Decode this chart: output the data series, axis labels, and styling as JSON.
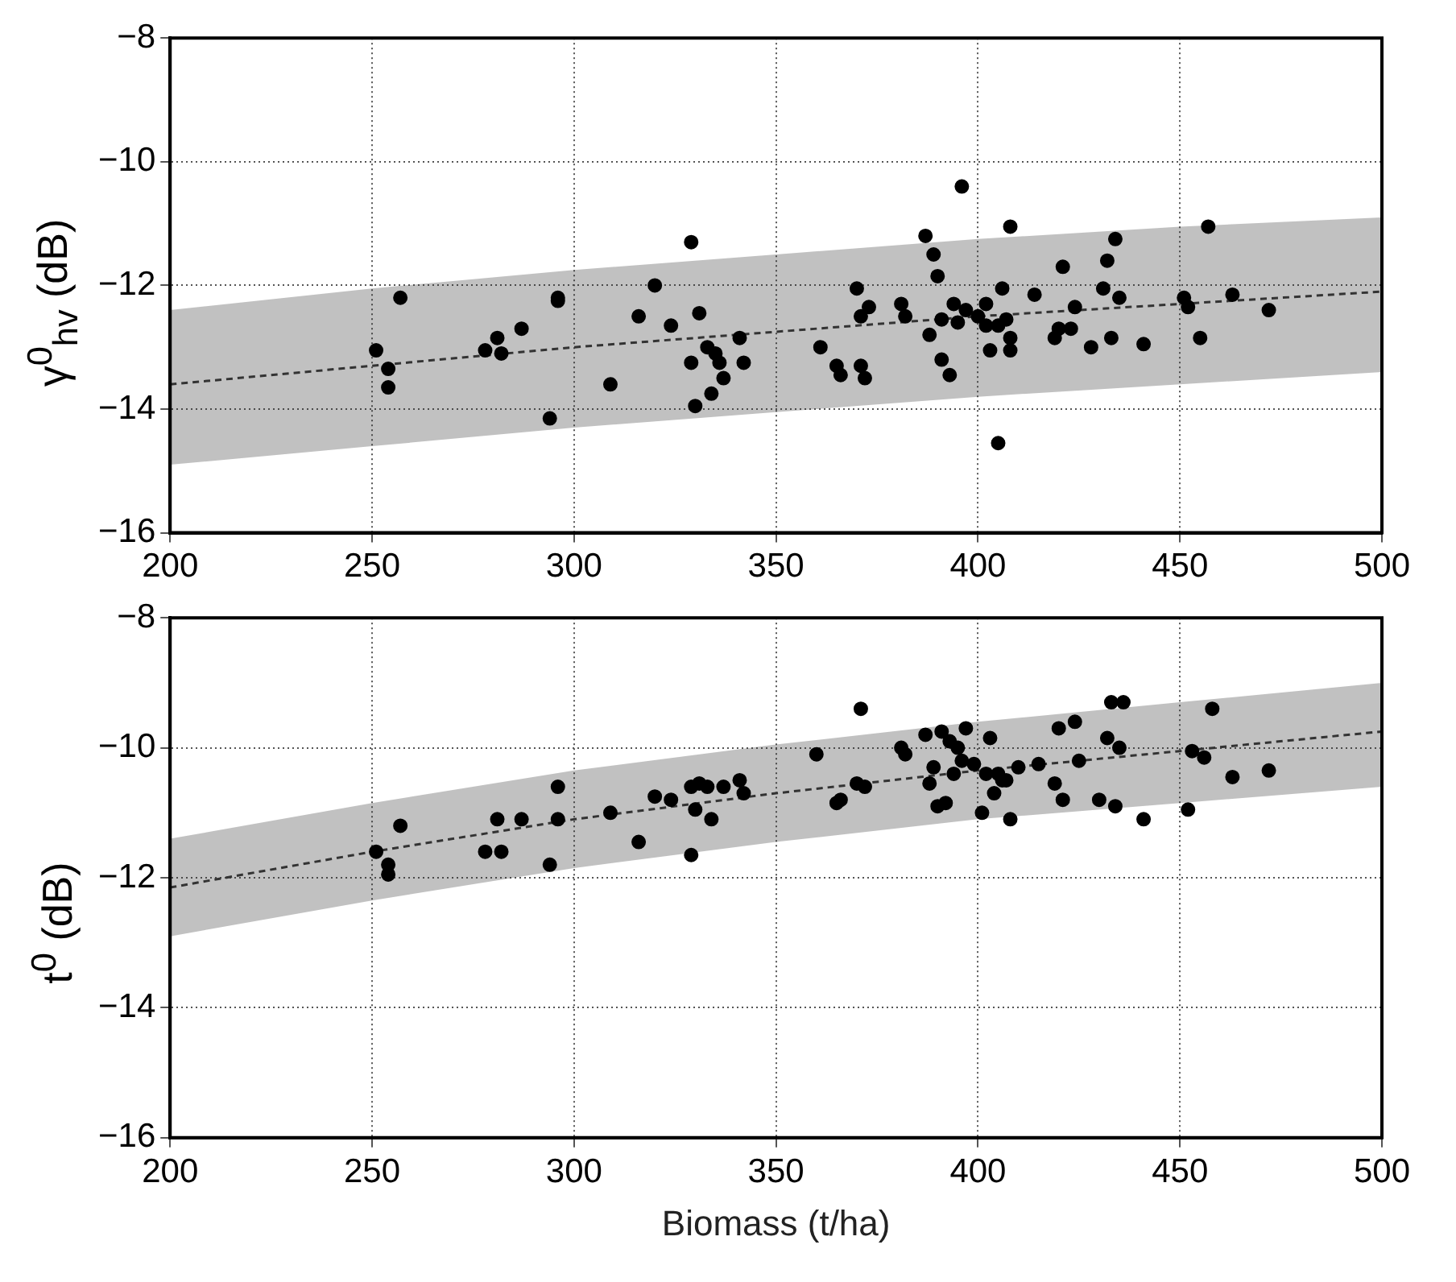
{
  "chart_data": [
    {
      "type": "scatter",
      "ylabel": "γ$^{0}$$_{hv}$ (dB)",
      "xlim": [
        200,
        500
      ],
      "xticks": [
        200,
        250,
        300,
        350,
        400,
        450,
        500
      ],
      "ylim": [
        -16,
        -8
      ],
      "yticks": [
        -16,
        -14,
        -12,
        -10,
        -8
      ],
      "grid": true,
      "legend": false,
      "marker": "circle",
      "series": [
        {
          "type": "line",
          "color": "#333333",
          "line_style": "dashed",
          "marker": "none",
          "x": [
            200,
            250,
            300,
            350,
            400,
            450,
            500
          ],
          "values": [
            -13.6,
            -13.3,
            -13.0,
            -12.75,
            -12.5,
            -12.3,
            -12.1
          ],
          "lower": [
            -14.9,
            -14.6,
            -14.3,
            -14.05,
            -13.8,
            -13.6,
            -13.4
          ],
          "upper": [
            -12.4,
            -12.05,
            -11.75,
            -11.5,
            -11.25,
            -11.05,
            -10.9
          ]
        },
        {
          "color": "#000000",
          "x": [
            251,
            254,
            254,
            257,
            278,
            281,
            282,
            287,
            294,
            296,
            296,
            309,
            316,
            320,
            324,
            329,
            329,
            330,
            331,
            333,
            334,
            335,
            336,
            337,
            341,
            342,
            361,
            365,
            366,
            370,
            371,
            371,
            372,
            373,
            381,
            382,
            387,
            388,
            389,
            390,
            391,
            391,
            393,
            394,
            395,
            396,
            397,
            400,
            402,
            402,
            403,
            405,
            405,
            406,
            407,
            408,
            408,
            408,
            414,
            419,
            420,
            421,
            423,
            424,
            428,
            431,
            432,
            433,
            434,
            435,
            441,
            451,
            452,
            455,
            457,
            463,
            472
          ],
          "values": [
            -13.05,
            -13.35,
            -13.65,
            -12.2,
            -13.05,
            -12.85,
            -13.1,
            -12.7,
            -14.15,
            -12.2,
            -12.25,
            -13.6,
            -12.5,
            -12.0,
            -12.65,
            -11.3,
            -13.25,
            -13.95,
            -12.45,
            -13.0,
            -13.75,
            -13.1,
            -13.25,
            -13.5,
            -12.85,
            -13.25,
            -13.0,
            -13.3,
            -13.45,
            -12.05,
            -12.5,
            -13.3,
            -13.5,
            -12.35,
            -12.3,
            -12.5,
            -11.2,
            -12.8,
            -11.5,
            -11.85,
            -12.55,
            -13.2,
            -13.45,
            -12.3,
            -12.6,
            -10.4,
            -12.4,
            -12.5,
            -12.3,
            -12.65,
            -13.05,
            -14.55,
            -12.65,
            -12.05,
            -12.55,
            -11.05,
            -12.85,
            -13.05,
            -12.15,
            -12.85,
            -12.7,
            -11.7,
            -12.7,
            -12.35,
            -13.0,
            -12.05,
            -11.6,
            -12.85,
            -11.25,
            -12.2,
            -12.95,
            -12.2,
            -12.35,
            -12.85,
            -11.05,
            -12.15,
            -12.4
          ]
        }
      ]
    },
    {
      "type": "scatter",
      "ylabel": "t$^{0}$ (dB)",
      "xlabel": "Biomass (t/ha)",
      "xlim": [
        200,
        500
      ],
      "xticks": [
        200,
        250,
        300,
        350,
        400,
        450,
        500
      ],
      "ylim": [
        -16,
        -8
      ],
      "yticks": [
        -16,
        -14,
        -12,
        -10,
        -8
      ],
      "grid": true,
      "legend": false,
      "marker": "circle",
      "series": [
        {
          "type": "line",
          "color": "#333333",
          "line_style": "dashed",
          "marker": "none",
          "x": [
            200,
            250,
            300,
            350,
            400,
            450,
            500
          ],
          "values": [
            -12.15,
            -11.6,
            -11.1,
            -10.7,
            -10.35,
            -10.05,
            -9.75
          ],
          "lower": [
            -12.9,
            -12.35,
            -11.85,
            -11.45,
            -11.1,
            -10.85,
            -10.6
          ],
          "upper": [
            -11.4,
            -10.85,
            -10.35,
            -9.95,
            -9.6,
            -9.3,
            -9.0
          ]
        },
        {
          "color": "#000000",
          "x": [
            251,
            254,
            254,
            257,
            278,
            281,
            282,
            287,
            294,
            296,
            296,
            309,
            316,
            320,
            324,
            329,
            329,
            330,
            331,
            333,
            334,
            337,
            341,
            342,
            360,
            365,
            366,
            370,
            371,
            372,
            381,
            382,
            387,
            388,
            389,
            390,
            391,
            392,
            393,
            394,
            395,
            396,
            397,
            399,
            401,
            402,
            403,
            404,
            405,
            406,
            407,
            408,
            410,
            415,
            419,
            420,
            421,
            424,
            425,
            430,
            432,
            433,
            434,
            435,
            436,
            441,
            452,
            453,
            456,
            458,
            463,
            472
          ],
          "values": [
            -11.6,
            -11.95,
            -11.8,
            -11.2,
            -11.6,
            -11.1,
            -11.6,
            -11.1,
            -11.8,
            -10.6,
            -11.1,
            -11.0,
            -11.45,
            -10.75,
            -10.8,
            -11.65,
            -10.6,
            -10.95,
            -10.55,
            -10.6,
            -11.1,
            -10.6,
            -10.5,
            -10.7,
            -10.1,
            -10.85,
            -10.8,
            -10.55,
            -9.4,
            -10.6,
            -10.0,
            -10.1,
            -9.8,
            -10.55,
            -10.3,
            -10.9,
            -9.75,
            -10.85,
            -9.9,
            -10.4,
            -10.0,
            -10.2,
            -9.7,
            -10.25,
            -11.0,
            -10.4,
            -9.85,
            -10.7,
            -10.4,
            -10.5,
            -10.5,
            -11.1,
            -10.3,
            -10.25,
            -10.55,
            -9.7,
            -10.8,
            -9.6,
            -10.2,
            -10.8,
            -9.85,
            -9.3,
            -10.9,
            -10.0,
            -9.3,
            -11.1,
            -10.95,
            -10.05,
            -10.15,
            -9.4,
            -10.45,
            -10.35
          ]
        }
      ]
    }
  ]
}
